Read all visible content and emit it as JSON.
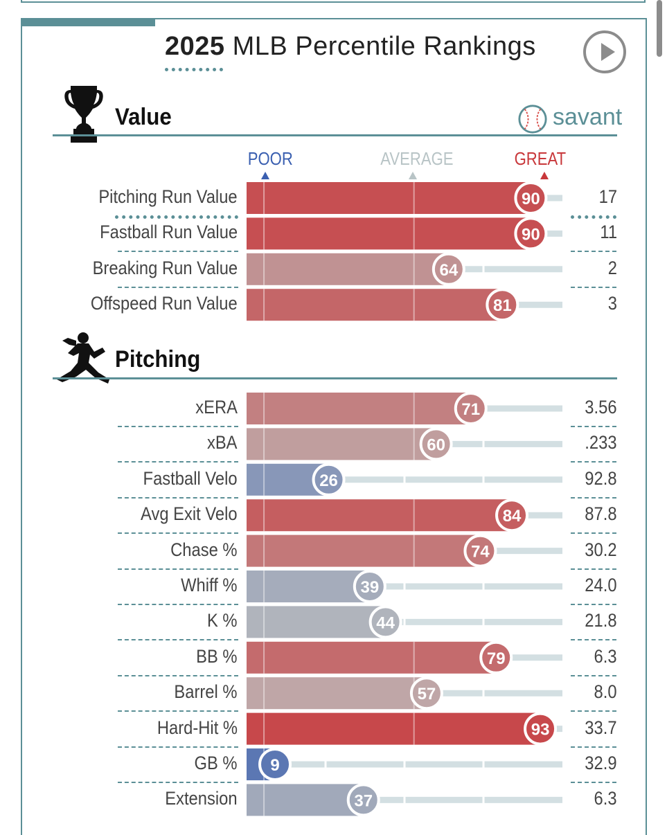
{
  "header": {
    "year": "2025",
    "title_rest": "MLB Percentile Rankings",
    "play_icon": "play-icon"
  },
  "brand": {
    "text": "savant",
    "icon": "baseball-icon"
  },
  "scale": {
    "poor": "POOR",
    "average": "AVERAGE",
    "great": "GREAT"
  },
  "colors": {
    "accent": "#5b8f96",
    "great": "#c8373a",
    "poor": "#3a5fb0",
    "average": "#bdbdbd",
    "track": "#d3dfe2"
  },
  "chart_data": {
    "type": "bar",
    "xlim": [
      0,
      100
    ],
    "sections": [
      {
        "name": "Value",
        "icon": "trophy-icon",
        "metrics": [
          {
            "label": "Pitching Run Value",
            "percentile": 90,
            "value": "17"
          },
          {
            "label": "Fastball Run Value",
            "percentile": 90,
            "value": "11"
          },
          {
            "label": "Breaking Run Value",
            "percentile": 64,
            "value": "2"
          },
          {
            "label": "Offspeed Run Value",
            "percentile": 81,
            "value": "3"
          }
        ]
      },
      {
        "name": "Pitching",
        "icon": "pitcher-icon",
        "metrics": [
          {
            "label": "xERA",
            "percentile": 71,
            "value": "3.56"
          },
          {
            "label": "xBA",
            "percentile": 60,
            "value": ".233"
          },
          {
            "label": "Fastball Velo",
            "percentile": 26,
            "value": "92.8"
          },
          {
            "label": "Avg Exit Velo",
            "percentile": 84,
            "value": "87.8"
          },
          {
            "label": "Chase %",
            "percentile": 74,
            "value": "30.2"
          },
          {
            "label": "Whiff %",
            "percentile": 39,
            "value": "24.0"
          },
          {
            "label": "K %",
            "percentile": 44,
            "value": "21.8"
          },
          {
            "label": "BB %",
            "percentile": 79,
            "value": "6.3"
          },
          {
            "label": "Barrel %",
            "percentile": 57,
            "value": "8.0"
          },
          {
            "label": "Hard-Hit %",
            "percentile": 93,
            "value": "33.7"
          },
          {
            "label": "GB %",
            "percentile": 9,
            "value": "32.9"
          },
          {
            "label": "Extension",
            "percentile": 37,
            "value": "6.3"
          }
        ]
      }
    ]
  }
}
